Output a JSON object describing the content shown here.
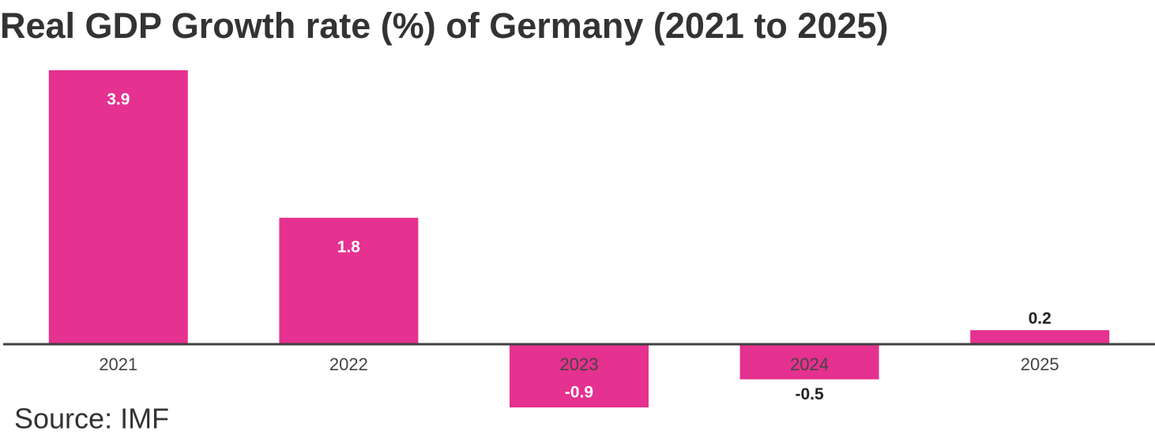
{
  "chart_data": {
    "type": "bar",
    "title": "Real GDP Growth rate (%) of Germany (2021 to 2025)",
    "categories": [
      "2021",
      "2022",
      "2023",
      "2024",
      "2025"
    ],
    "values": [
      3.9,
      1.8,
      -0.9,
      -0.5,
      0.2
    ],
    "color": "#e5318f",
    "source": "Source: IMF"
  }
}
